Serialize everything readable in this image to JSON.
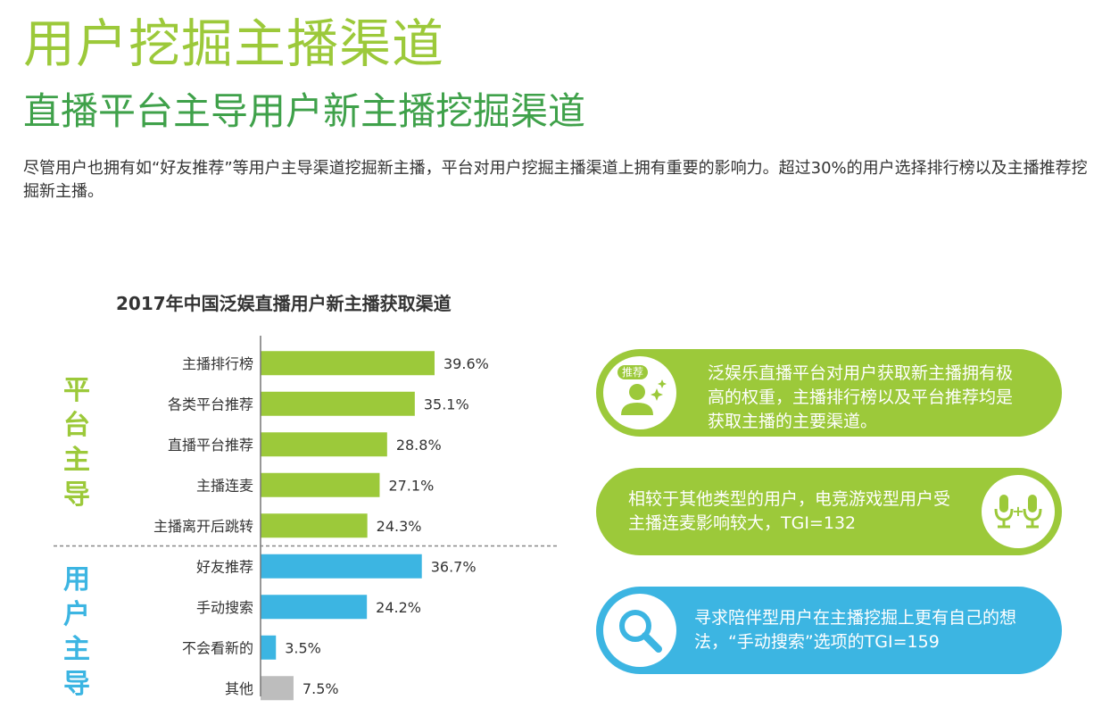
{
  "header": {
    "title": "用户挖掘主播渠道",
    "subtitle": "直播平台主导用户新主播挖掘渠道",
    "description": "尽管用户也拥有如“好友推荐”等用户主导渠道挖掘新主播，平台对用户挖掘主播渠道上拥有重要的影响力。超过30%的用户选择排行榜以及主播推荐挖掘新主播。"
  },
  "groups": {
    "platform": "平台主导",
    "user": "用户主导"
  },
  "chart_data": {
    "type": "bar",
    "orientation": "horizontal",
    "title": "2017年中国泛娱直播用户新主播获取渠道",
    "categories": [
      "主播排行榜",
      "各类平台推荐",
      "直播平台推荐",
      "主播连麦",
      "主播离开后跳转",
      "好友推荐",
      "手动搜索",
      "不会看新的",
      "其他"
    ],
    "values": [
      39.6,
      35.1,
      28.8,
      27.1,
      24.3,
      36.7,
      24.2,
      3.5,
      7.5
    ],
    "labels": [
      "39.6%",
      "35.1%",
      "28.8%",
      "27.1%",
      "24.3%",
      "36.7%",
      "24.2%",
      "3.5%",
      "7.5%"
    ],
    "colors": [
      "#9cc93a",
      "#9cc93a",
      "#9cc93a",
      "#9cc93a",
      "#9cc93a",
      "#3cb5e2",
      "#3cb5e2",
      "#3cb5e2",
      "#bdbdbd"
    ],
    "xlim": [
      0,
      40
    ],
    "grid": false
  },
  "callouts": [
    {
      "text": "泛娱乐直播平台对用户获取新主播拥有极高的权重，主播排行榜以及平台推荐均是获取主播的主要渠道。",
      "icon": "recommend-user-icon",
      "badge": "推荐",
      "color": "#9cc93a"
    },
    {
      "text": "相较于其他类型的用户，电竞游戏型用户受主播连麦影响较大，TGI=132",
      "icon": "microphone-pair-icon",
      "color": "#9cc93a"
    },
    {
      "text": "寻求陪伴型用户在主播挖掘上更有自己的想法，“手动搜索”选项的TGI=159",
      "icon": "search-icon",
      "color": "#3cb5e2"
    }
  ]
}
